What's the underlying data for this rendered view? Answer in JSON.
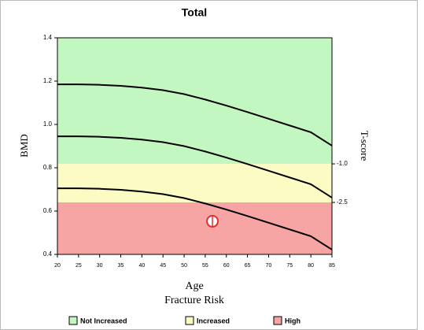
{
  "chart_data": {
    "type": "line",
    "title": "Total",
    "x_label": "Age",
    "y_label": "BMD",
    "y2_label": "T-score",
    "x": [
      20,
      25,
      30,
      35,
      40,
      45,
      50,
      55,
      60,
      65,
      70,
      75,
      80,
      85
    ],
    "xlim": [
      20,
      85
    ],
    "xticks": [
      20,
      25,
      30,
      35,
      40,
      45,
      50,
      55,
      60,
      65,
      70,
      75,
      80,
      85
    ],
    "ylim": [
      0.4,
      1.4
    ],
    "yticks": [
      0.4,
      0.6,
      0.8,
      {
        "value": 1,
        "label": "1.0"
      },
      1.2,
      1.4
    ],
    "y2lim": [
      -4.52,
      3.9
    ],
    "y2ticks": [
      {
        "value": -1,
        "label": "-1.0"
      },
      {
        "value": -2.5,
        "label": "-2.5"
      }
    ],
    "legend_title": "Fracture Risk",
    "bands": [
      {
        "name": "Not Increased",
        "color": "#c2f7c2",
        "range": [
          0.818,
          1.4
        ]
      },
      {
        "name": "Increased",
        "color": "#fbfbc3",
        "range": [
          0.64,
          0.818
        ]
      },
      {
        "name": "High",
        "color": "#f7a4a4",
        "range": [
          0.4,
          0.64
        ]
      }
    ],
    "series": [
      {
        "color": "#000000",
        "values": [
          1.185,
          1.185,
          1.183,
          1.178,
          1.17,
          1.158,
          1.14,
          1.115,
          1.087,
          1.057,
          1.026,
          0.995,
          0.964,
          0.902
        ]
      },
      {
        "color": "#000000",
        "values": [
          0.945,
          0.945,
          0.943,
          0.938,
          0.93,
          0.918,
          0.9,
          0.875,
          0.847,
          0.817,
          0.786,
          0.755,
          0.724,
          0.662
        ]
      },
      {
        "color": "#000000",
        "values": [
          0.705,
          0.705,
          0.703,
          0.698,
          0.69,
          0.678,
          0.66,
          0.635,
          0.607,
          0.577,
          0.546,
          0.515,
          0.484,
          0.422
        ]
      }
    ],
    "markers": [
      {
        "x": 56.7,
        "y": 0.553,
        "color": "#e03030"
      }
    ]
  }
}
